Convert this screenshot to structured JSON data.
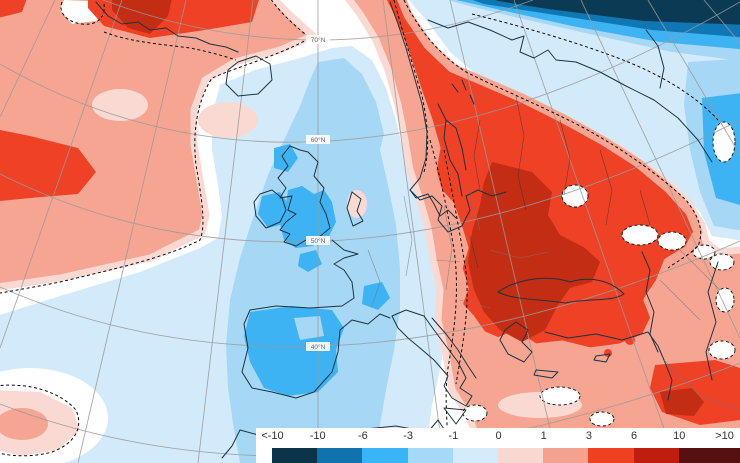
{
  "chart_data": {
    "type": "heatmap",
    "subtype": "geographic-temperature-anomaly-map",
    "region": "Europe and North Atlantic",
    "variable": "temperature anomaly (degrees C)",
    "legend": {
      "position": "bottom-right",
      "boundary_labels": [
        "<-10",
        "-10",
        "-6",
        "-3",
        "-1",
        "0",
        "1",
        "3",
        "6",
        "10",
        ">10"
      ],
      "colors": [
        "#0b3349",
        "#1173ad",
        "#39b4f6",
        "#a6d9f7",
        "#d4ebfc",
        "#fad8d2",
        "#f2a28e",
        "#f04022",
        "#bf1d0d",
        "#571010"
      ]
    },
    "graticule_labels": [
      "70°N",
      "60°N",
      "50°N",
      "40°N"
    ],
    "regions": [
      {
        "name": "British Isles",
        "anomaly_c": "-6 to -3"
      },
      {
        "name": "Iberian Peninsula",
        "anomaly_c": "-6 to -3"
      },
      {
        "name": "France / western Europe",
        "anomaly_c": "-3 to -1"
      },
      {
        "name": "Northeast Atlantic / Iceland",
        "anomaly_c": "-1 to 0"
      },
      {
        "name": "Scandinavia / Finland",
        "anomaly_c": "+3 to +6"
      },
      {
        "name": "Eastern Europe / Balkans / Black Sea",
        "anomaly_c": "+6 to +10"
      },
      {
        "name": "Western Russia",
        "anomaly_c": "+3 to +6"
      },
      {
        "name": "Greenland",
        "anomaly_c": "+3 to +10"
      },
      {
        "name": "Western Atlantic",
        "anomaly_c": "+1 to +3"
      },
      {
        "name": "Arctic Ocean (top edge)",
        "anomaly_c": "-10 to <-10"
      },
      {
        "name": "Eastern Mediterranean / Middle East",
        "anomaly_c": "+1 to +3"
      }
    ]
  },
  "palette": {
    "n4": "#0b3a55",
    "n3": "#0f78b4",
    "n2": "#3eb3f3",
    "n1": "#a6d7f5",
    "n0": "#d3eafb",
    "p0": "#fbd9d3",
    "p1": "#f5a592",
    "p2": "#ee4126",
    "p3": "#c32d13",
    "p4": "#5c110e",
    "coast": "#1c3340",
    "border": "#6b7a80",
    "grid": "#9a9a9a"
  }
}
